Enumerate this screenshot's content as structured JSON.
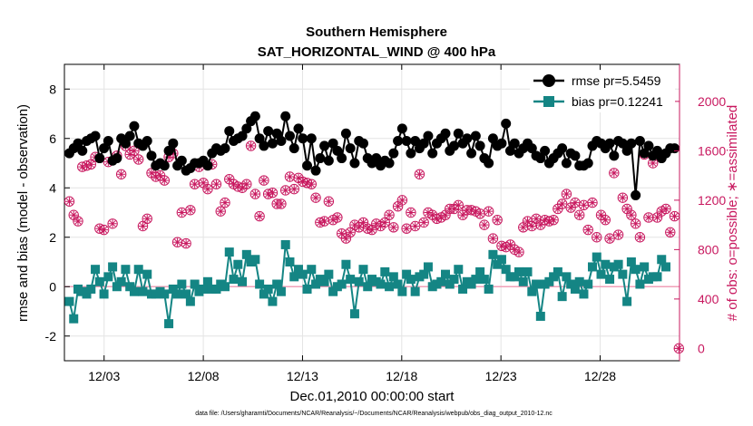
{
  "chart_data": {
    "type": "line",
    "title_line1": "Southern Hemisphere",
    "title_line2": "SAT_HORIZONTAL_WIND @ 400 hPa",
    "xlabel": "Dec.01,2010 00:00:00 start",
    "ylabel": "rmse and bias (model - observation)",
    "ylabel_right": "# of obs: o=possible; ∗=assimilated",
    "xlim": [
      0,
      31
    ],
    "ylim": [
      -3,
      9
    ],
    "ylim_right": [
      -100,
      2300
    ],
    "x_ticks": [
      2,
      7,
      12,
      17,
      22,
      27
    ],
    "x_tick_labels": [
      "12/03",
      "12/08",
      "12/13",
      "12/18",
      "12/23",
      "12/28"
    ],
    "y_ticks": [
      -2,
      0,
      2,
      4,
      6,
      8
    ],
    "y_tick_labels": [
      "-2",
      "0",
      "2",
      "4",
      "6",
      "8"
    ],
    "y_right_ticks": [
      0,
      400,
      800,
      1200,
      1600,
      2000
    ],
    "y_right_tick_labels": [
      "0",
      "400",
      "800",
      "1200",
      "1600",
      "2000"
    ],
    "footer": "data file: /Users/gharamti/Documents/NCAR/Reanalysis/~/Documents/NCAR/Reanalysis/webpub/obs_diag_output_2010-12.nc",
    "colors": {
      "rmse": "#000000",
      "bias": "#148584",
      "obs": "#c8185f",
      "zero_line": "#f0a0b8"
    },
    "series": [
      {
        "name": "rmse pr=5.5459",
        "key": "rmse",
        "values": [
          5.4,
          5.6,
          5.8,
          5.5,
          5.9,
          6.0,
          6.1,
          5.2,
          5.6,
          5.9,
          5.1,
          5.2,
          6.0,
          5.8,
          6.1,
          6.5,
          5.8,
          5.7,
          5.9,
          5.3,
          4.9,
          5.0,
          4.9,
          5.5,
          5.8,
          4.9,
          5.1,
          4.7,
          4.8,
          5.0,
          5.0,
          5.1,
          4.9,
          5.4,
          5.6,
          5.5,
          5.6,
          6.3,
          5.9,
          6.0,
          6.1,
          6.4,
          6.7,
          6.9,
          6.0,
          5.7,
          6.3,
          5.8,
          6.2,
          5.9,
          6.9,
          6.1,
          5.6,
          6.4,
          6.0,
          4.9,
          6.0,
          4.7,
          5.2,
          5.7,
          5.1,
          5.8,
          5.5,
          5.2,
          6.2,
          5.6,
          5.0,
          5.9,
          5.8,
          5.2,
          5.0,
          5.2,
          4.9,
          5.1,
          5.0,
          5.4,
          5.9,
          6.4,
          5.9,
          5.4,
          5.9,
          5.6,
          5.8,
          6.1,
          5.4,
          5.8,
          6.0,
          6.2,
          5.5,
          5.7,
          6.2,
          5.8,
          6.0,
          5.4,
          6.1,
          5.7,
          5.2,
          5.0,
          6.0,
          5.7,
          5.8,
          6.6,
          5.5,
          5.8,
          5.4,
          5.6,
          5.8,
          5.6,
          5.3,
          5.2,
          5.5,
          5.0,
          5.2,
          5.4,
          5.6,
          5.0,
          5.4,
          5.3,
          4.9,
          4.9,
          5.0,
          5.7,
          5.9,
          5.8,
          5.6,
          5.8,
          5.3,
          5.9,
          5.8,
          5.5,
          5.8,
          3.7,
          5.9,
          5.4,
          5.7,
          5.3,
          5.5,
          5.2,
          5.4,
          5.6,
          5.6
        ]
      },
      {
        "name": "bias pr=0.12241",
        "key": "bias",
        "values": [
          -0.6,
          -1.3,
          -0.1,
          -0.2,
          -0.3,
          -0.1,
          0.7,
          0.2,
          -0.3,
          0.4,
          0.8,
          0.0,
          0.2,
          0.7,
          0.0,
          -0.2,
          0.7,
          -0.2,
          0.5,
          -0.3,
          -0.3,
          -0.2,
          -0.3,
          -1.5,
          -0.1,
          -0.3,
          0.1,
          -0.3,
          -0.6,
          0.1,
          -0.2,
          -0.1,
          0.2,
          -0.1,
          -0.1,
          0.1,
          0.0,
          1.4,
          0.3,
          0.9,
          0.2,
          1.3,
          1.0,
          1.1,
          0.1,
          -0.3,
          -0.1,
          -0.6,
          0.1,
          -0.2,
          1.7,
          1.0,
          0.4,
          0.7,
          0.5,
          -0.1,
          0.7,
          0.1,
          0.3,
          0.2,
          0.5,
          -0.2,
          0.0,
          0.1,
          0.9,
          0.3,
          -1.1,
          0.2,
          0.7,
          0.0,
          0.3,
          0.2,
          0.1,
          0.6,
          0.0,
          0.4,
          0.1,
          -0.2,
          0.5,
          0.3,
          -0.2,
          0.4,
          0.5,
          0.8,
          0.0,
          0.1,
          0.2,
          0.5,
          0.1,
          0.3,
          0.7,
          -0.1,
          0.2,
          0.1,
          0.3,
          0.6,
          0.3,
          -0.1,
          1.3,
          0.9,
          1.1,
          0.7,
          0.4,
          0.4,
          0.6,
          0.2,
          0.6,
          -0.2,
          0.1,
          -1.2,
          0.1,
          0.2,
          0.4,
          0.6,
          -0.4,
          0.4,
          0.1,
          -0.1,
          0.2,
          -0.3,
          0.1,
          0.8,
          1.2,
          0.5,
          0.9,
          0.3,
          0.8,
          0.9,
          0.5,
          -0.6,
          1.0,
          0.7,
          0.1,
          0.8,
          0.3,
          0.4,
          0.4,
          1.1,
          0.8
        ]
      }
    ],
    "obs_possible": [
      1190,
      1080,
      1030,
      1470,
      1480,
      1490,
      1550,
      970,
      960,
      1510,
      1010,
      1560,
      1410,
      1640,
      1570,
      1600,
      1530,
      990,
      1050,
      1420,
      1390,
      1400,
      1360,
      1550,
      1580,
      860,
      1100,
      850,
      1120,
      1330,
      1470,
      1340,
      1290,
      1490,
      1330,
      1110,
      1180,
      1370,
      1330,
      1310,
      1300,
      1330,
      1640,
      1250,
      1070,
      1360,
      1250,
      1260,
      1170,
      1170,
      1280,
      1390,
      1290,
      1380,
      1350,
      1340,
      1330,
      1220,
      1020,
      1030,
      1190,
      1040,
      1060,
      930,
      890,
      940,
      1000,
      980,
      1020,
      970,
      960,
      1010,
      990,
      1020,
      1080,
      980,
      1150,
      1200,
      970,
      1100,
      990,
      1410,
      1020,
      1100,
      1080,
      1050,
      1060,
      1080,
      1130,
      1130,
      1160,
      1080,
      1120,
      1120,
      1110,
      1090,
      1000,
      1110,
      890,
      1040,
      830,
      820,
      840,
      800,
      780,
      980,
      1030,
      990,
      1050,
      1000,
      1040,
      1030,
      1040,
      1130,
      1170,
      1250,
      1140,
      1180,
      1080,
      1160,
      960,
      1180,
      900,
      1080,
      1040,
      890,
      1420,
      920,
      1220,
      1130,
      1080,
      1010,
      900,
      1570,
      1060,
      1500,
      1060,
      1110,
      1130,
      940,
      1070,
      0
    ],
    "obs_assimilated": [
      1190,
      1080,
      1030,
      1470,
      1480,
      1490,
      1550,
      970,
      960,
      1510,
      1010,
      1560,
      1410,
      1640,
      1570,
      1600,
      1530,
      990,
      1050,
      1420,
      1390,
      1400,
      1360,
      1550,
      1580,
      860,
      1100,
      850,
      1120,
      1330,
      1470,
      1340,
      1290,
      1490,
      1330,
      1110,
      1180,
      1370,
      1330,
      1310,
      1300,
      1330,
      1640,
      1250,
      1070,
      1360,
      1250,
      1260,
      1170,
      1170,
      1280,
      1390,
      1290,
      1380,
      1350,
      1340,
      1330,
      1220,
      1020,
      1030,
      1190,
      1040,
      1060,
      930,
      890,
      940,
      1000,
      980,
      1020,
      970,
      960,
      1010,
      990,
      1020,
      1080,
      980,
      1150,
      1200,
      970,
      1100,
      990,
      1410,
      1020,
      1100,
      1080,
      1050,
      1060,
      1080,
      1130,
      1130,
      1160,
      1080,
      1120,
      1120,
      1110,
      1090,
      1000,
      1110,
      890,
      1040,
      830,
      820,
      840,
      800,
      780,
      980,
      1030,
      990,
      1050,
      1000,
      1040,
      1030,
      1040,
      1130,
      1170,
      1250,
      1140,
      1180,
      1080,
      1160,
      960,
      1180,
      900,
      1080,
      1040,
      890,
      1420,
      920,
      1220,
      1130,
      1080,
      1010,
      900,
      1570,
      1060,
      1500,
      1060,
      1110,
      1130,
      940,
      1070,
      0
    ]
  }
}
